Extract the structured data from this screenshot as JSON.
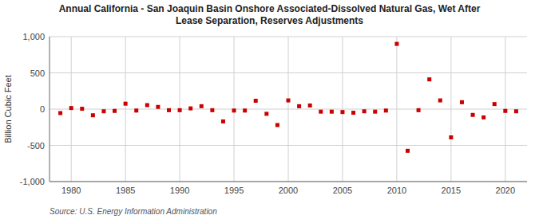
{
  "chart_data": {
    "type": "scatter",
    "title": "Annual California - San Joaquin Basin Onshore Associated-Dissolved Natural Gas, Wet After\nLease Separation, Reserves Adjustments",
    "y_label": "Billion Cubic Feet",
    "annotations": [
      "Source: U.S. Energy Information Administration"
    ],
    "x": [
      1979,
      1980,
      1981,
      1982,
      1983,
      1984,
      1985,
      1986,
      1987,
      1988,
      1989,
      1990,
      1991,
      1992,
      1993,
      1994,
      1995,
      1996,
      1997,
      1998,
      1999,
      2000,
      2001,
      2002,
      2003,
      2004,
      2005,
      2006,
      2007,
      2008,
      2009,
      2010,
      2011,
      2012,
      2013,
      2014,
      2015,
      2016,
      2017,
      2018,
      2019,
      2020,
      2021
    ],
    "values": [
      -55,
      15,
      5,
      -85,
      -30,
      -25,
      75,
      -20,
      55,
      30,
      -15,
      -15,
      10,
      40,
      -15,
      -170,
      -20,
      -20,
      115,
      -65,
      -220,
      120,
      40,
      50,
      -35,
      -35,
      -40,
      -50,
      -30,
      -35,
      -20,
      900,
      -575,
      -15,
      410,
      120,
      -390,
      95,
      -80,
      -115,
      70,
      -25,
      -30
    ],
    "color": "#cc0000",
    "marker": "square",
    "xlim": [
      1978,
      2022
    ],
    "ylim": [
      -1000,
      1000
    ],
    "xticks": [
      1980,
      1985,
      1990,
      1995,
      2000,
      2005,
      2010,
      2015,
      2020
    ],
    "yticks": [
      {
        "value": -1000,
        "label": "-1,000"
      },
      -500,
      0,
      500,
      {
        "value": 1000,
        "label": "1,000"
      }
    ],
    "grid": true
  }
}
